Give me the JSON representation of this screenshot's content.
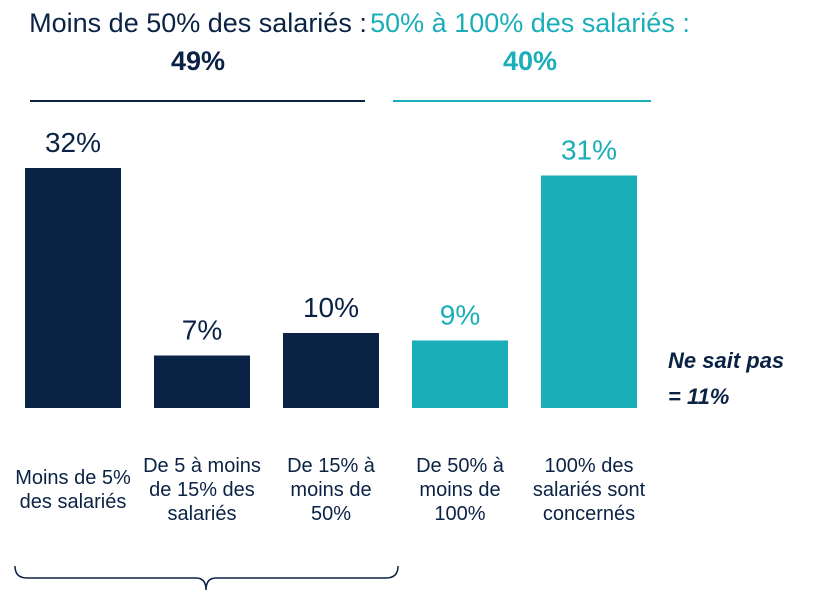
{
  "chart_data": {
    "type": "bar",
    "groups": [
      {
        "label": "Moins de 50% des salariés :",
        "value": 49,
        "value_label": "49%",
        "color": "#0a2244"
      },
      {
        "label": "50% à 100% des salariés :",
        "value": 40,
        "value_label": "40%",
        "color": "#1aaeb9"
      }
    ],
    "categories": [
      "Moins de 5% des salariés",
      "De 5 à moins de 15% des salariés",
      "De 15% à moins de 50%",
      "De 50% à moins de 100%",
      "100% des salariés sont concernés"
    ],
    "values": [
      32,
      7,
      10,
      9,
      31
    ],
    "value_labels": [
      "32%",
      "7%",
      "10%",
      "9%",
      "31%"
    ],
    "colors": [
      "#0a2244",
      "#0a2244",
      "#0a2244",
      "#1aaeb9",
      "#1aaeb9"
    ],
    "note": {
      "label": "Ne sait pas",
      "value": 11,
      "value_label": "= 11%"
    }
  }
}
